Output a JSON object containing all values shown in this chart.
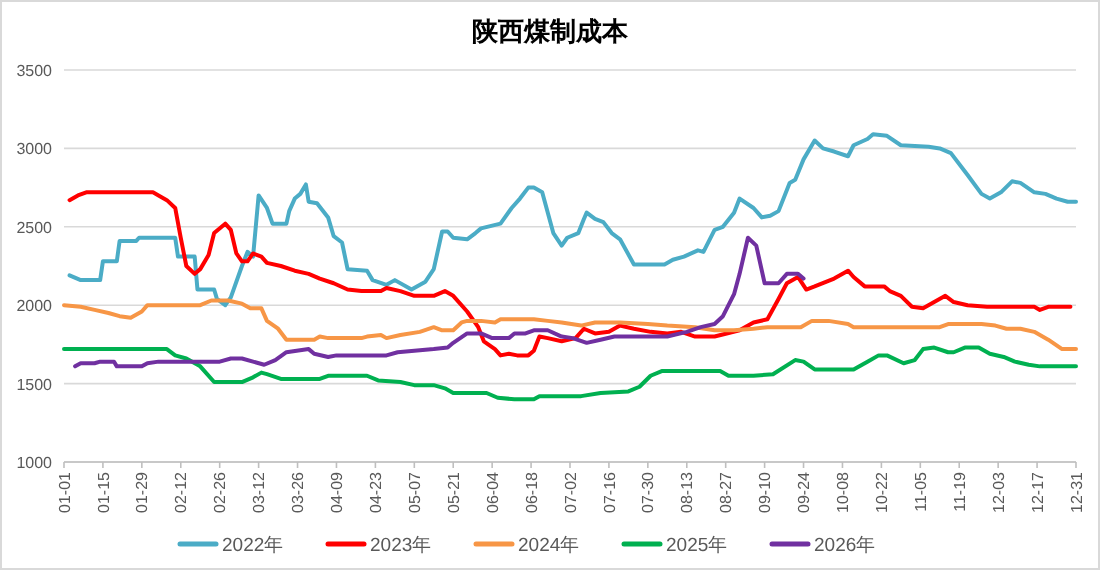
{
  "chart_data": {
    "type": "line",
    "title": "陕西煤制成本",
    "xlim": [
      "--01-01",
      "--12-31"
    ],
    "xticks": [
      {
        "value": "--01-01",
        "label": "01-01"
      },
      {
        "value": "--01-15",
        "label": "01-15"
      },
      {
        "value": "--01-29",
        "label": "01-29"
      },
      {
        "value": "--02-12",
        "label": "02-12"
      },
      {
        "value": "--02-26",
        "label": "02-26"
      },
      {
        "value": "--03-12",
        "label": "03-12"
      },
      {
        "value": "--03-26",
        "label": "03-26"
      },
      {
        "value": "--04-09",
        "label": "04-09"
      },
      {
        "value": "--04-23",
        "label": "04-23"
      },
      {
        "value": "--05-07",
        "label": "05-07"
      },
      {
        "value": "--05-21",
        "label": "05-21"
      },
      {
        "value": "--06-04",
        "label": "06-04"
      },
      {
        "value": "--06-18",
        "label": "06-18"
      },
      {
        "value": "--07-02",
        "label": "07-02"
      },
      {
        "value": "--07-16",
        "label": "07-16"
      },
      {
        "value": "--07-30",
        "label": "07-30"
      },
      {
        "value": "--08-13",
        "label": "08-13"
      },
      {
        "value": "--08-27",
        "label": "08-27"
      },
      {
        "value": "--09-10",
        "label": "09-10"
      },
      {
        "value": "--09-24",
        "label": "09-24"
      },
      {
        "value": "--10-08",
        "label": "10-08"
      },
      {
        "value": "--10-22",
        "label": "10-22"
      },
      {
        "value": "--11-05",
        "label": "11-05"
      },
      {
        "value": "--11-19",
        "label": "11-19"
      },
      {
        "value": "--12-03",
        "label": "12-03"
      },
      {
        "value": "--12-17",
        "label": "12-17"
      },
      {
        "value": "--12-31",
        "label": "12-31"
      }
    ],
    "ylim": [
      1000,
      3500
    ],
    "yticks": [
      1000,
      1500,
      2000,
      2500,
      3000,
      3500
    ],
    "grid": "y",
    "legend": "bottom",
    "series": [
      {
        "name": "2022年",
        "color": "#4bacc6",
        "x": [
          "--01-03",
          "--01-07",
          "--01-14",
          "--01-15",
          "--01-20",
          "--01-21",
          "--01-27",
          "--01-28",
          "--02-10",
          "--02-11",
          "--02-17",
          "--02-18",
          "--02-24",
          "--02-25",
          "--02-28",
          "--03-02",
          "--03-06",
          "--03-08",
          "--03-10",
          "--03-12",
          "--03-15",
          "--03-17",
          "--03-22",
          "--03-23",
          "--03-25",
          "--03-27",
          "--03-29",
          "--03-30",
          "--04-02",
          "--04-06",
          "--04-08",
          "--04-11",
          "--04-13",
          "--04-20",
          "--04-22",
          "--04-27",
          "--04-30",
          "--05-06",
          "--05-11",
          "--05-14",
          "--05-17",
          "--05-19",
          "--05-21",
          "--05-26",
          "--05-29",
          "--05-31",
          "--06-07",
          "--06-11",
          "--06-14",
          "--06-17",
          "--06-19",
          "--06-22",
          "--06-26",
          "--06-29",
          "--07-01",
          "--07-05",
          "--07-07",
          "--07-08",
          "--07-11",
          "--07-14",
          "--07-17",
          "--07-20",
          "--07-25",
          "--08-05",
          "--08-08",
          "--08-12",
          "--08-17",
          "--08-19",
          "--08-23",
          "--08-26",
          "--08-30",
          "--09-01",
          "--09-06",
          "--09-09",
          "--09-12",
          "--09-15",
          "--09-19",
          "--09-21",
          "--09-24",
          "--09-28",
          "--10-01",
          "--10-05",
          "--10-10",
          "--10-12",
          "--10-17",
          "--10-19",
          "--10-24",
          "--10-29",
          "--11-08",
          "--11-12",
          "--11-16",
          "--11-22",
          "--11-27",
          "--11-30",
          "--12-04",
          "--12-08",
          "--12-11",
          "--12-16",
          "--12-20",
          "--12-24",
          "--12-28",
          "--12-31"
        ],
        "values": [
          2190,
          2160,
          2160,
          2280,
          2280,
          2410,
          2410,
          2430,
          2430,
          2310,
          2310,
          2100,
          2100,
          2040,
          2000,
          2050,
          2250,
          2340,
          2310,
          2700,
          2620,
          2520,
          2520,
          2600,
          2680,
          2710,
          2770,
          2660,
          2650,
          2560,
          2440,
          2400,
          2230,
          2220,
          2160,
          2130,
          2160,
          2100,
          2150,
          2230,
          2470,
          2470,
          2430,
          2420,
          2460,
          2490,
          2520,
          2620,
          2680,
          2750,
          2750,
          2720,
          2460,
          2380,
          2430,
          2460,
          2550,
          2590,
          2550,
          2530,
          2460,
          2420,
          2260,
          2260,
          2290,
          2310,
          2350,
          2340,
          2480,
          2500,
          2590,
          2680,
          2620,
          2560,
          2570,
          2600,
          2780,
          2800,
          2930,
          3050,
          3000,
          2980,
          2950,
          3020,
          3060,
          3090,
          3080,
          3020,
          3010,
          3000,
          2970,
          2830,
          2710,
          2680,
          2720,
          2790,
          2780,
          2720,
          2710,
          2680,
          2660,
          2660
        ]
      },
      {
        "name": "2023年",
        "color": "#ff0000",
        "x": [
          "--01-03",
          "--01-06",
          "--01-09",
          "--02-02",
          "--02-04",
          "--02-07",
          "--02-10",
          "--02-12",
          "--02-14",
          "--02-17",
          "--02-19",
          "--02-22",
          "--02-24",
          "--02-28",
          "--03-02",
          "--03-04",
          "--03-06",
          "--03-08",
          "--03-10",
          "--03-13",
          "--03-15",
          "--03-20",
          "--03-25",
          "--03-30",
          "--04-03",
          "--04-08",
          "--04-13",
          "--04-18",
          "--04-25",
          "--04-27",
          "--05-02",
          "--05-07",
          "--05-14",
          "--05-18",
          "--05-21",
          "--05-26",
          "--05-30",
          "--06-01",
          "--06-05",
          "--06-07",
          "--06-10",
          "--06-13",
          "--06-17",
          "--06-19",
          "--06-21",
          "--06-24",
          "--06-29",
          "--07-04",
          "--07-07",
          "--07-11",
          "--07-16",
          "--07-20",
          "--07-25",
          "--07-31",
          "--08-06",
          "--08-11",
          "--08-16",
          "--08-23",
          "--09-01",
          "--09-06",
          "--09-11",
          "--09-15",
          "--09-18",
          "--09-22",
          "--09-25",
          "--09-28",
          "--10-05",
          "--10-10",
          "--10-12",
          "--10-16",
          "--10-23",
          "--10-25",
          "--10-29",
          "--11-02",
          "--11-06",
          "--11-10",
          "--11-14",
          "--11-17",
          "--11-22",
          "--11-29",
          "--12-06",
          "--12-16",
          "--12-18",
          "--12-21",
          "--12-29"
        ],
        "values": [
          2670,
          2700,
          2720,
          2720,
          2700,
          2670,
          2620,
          2430,
          2250,
          2200,
          2230,
          2320,
          2460,
          2520,
          2480,
          2330,
          2280,
          2280,
          2330,
          2310,
          2270,
          2250,
          2220,
          2200,
          2170,
          2140,
          2100,
          2090,
          2090,
          2110,
          2090,
          2060,
          2060,
          2090,
          2060,
          1960,
          1860,
          1770,
          1720,
          1680,
          1690,
          1680,
          1680,
          1710,
          1800,
          1790,
          1770,
          1790,
          1850,
          1820,
          1830,
          1870,
          1850,
          1830,
          1820,
          1830,
          1800,
          1800,
          1840,
          1890,
          1910,
          2040,
          2140,
          2180,
          2100,
          2120,
          2170,
          2220,
          2180,
          2120,
          2120,
          2090,
          2060,
          1990,
          1980,
          2020,
          2060,
          2020,
          2000,
          1990,
          1990,
          1990,
          1970,
          1990,
          1990
        ]
      },
      {
        "name": "2024年",
        "color": "#f79646",
        "x": [
          "--01-01",
          "--01-07",
          "--01-12",
          "--01-17",
          "--01-21",
          "--01-25",
          "--01-29",
          "--01-31",
          "--02-19",
          "--02-23",
          "--03-01",
          "--03-06",
          "--03-09",
          "--03-13",
          "--03-15",
          "--03-19",
          "--03-22",
          "--04-01",
          "--04-03",
          "--04-06",
          "--04-18",
          "--04-20",
          "--04-25",
          "--04-27",
          "--05-02",
          "--05-09",
          "--05-14",
          "--05-17",
          "--05-21",
          "--05-24",
          "--05-26",
          "--05-31",
          "--06-05",
          "--06-07",
          "--06-19",
          "--06-24",
          "--06-29",
          "--07-06",
          "--07-11",
          "--07-20",
          "--07-30",
          "--08-06",
          "--08-16",
          "--08-23",
          "--08-30",
          "--09-06",
          "--09-11",
          "--09-23",
          "--09-27",
          "--10-03",
          "--10-10",
          "--10-12",
          "--11-12",
          "--11-15",
          "--11-27",
          "--12-02",
          "--12-06",
          "--12-11",
          "--12-16",
          "--12-21",
          "--12-26",
          "--12-31"
        ],
        "values": [
          2000,
          1990,
          1970,
          1950,
          1930,
          1920,
          1960,
          2000,
          2000,
          2030,
          2030,
          2010,
          1980,
          1980,
          1900,
          1850,
          1780,
          1780,
          1800,
          1790,
          1790,
          1800,
          1810,
          1790,
          1810,
          1830,
          1860,
          1840,
          1840,
          1890,
          1900,
          1900,
          1890,
          1910,
          1910,
          1900,
          1890,
          1870,
          1890,
          1890,
          1880,
          1870,
          1860,
          1840,
          1840,
          1850,
          1860,
          1860,
          1900,
          1900,
          1880,
          1860,
          1860,
          1880,
          1880,
          1870,
          1850,
          1850,
          1830,
          1780,
          1720,
          1720
        ]
      },
      {
        "name": "2025年",
        "color": "#00b050",
        "x": [
          "--01-01",
          "--02-07",
          "--02-10",
          "--02-14",
          "--02-19",
          "--02-24",
          "--03-06",
          "--03-10",
          "--03-13",
          "--03-15",
          "--03-20",
          "--04-03",
          "--04-06",
          "--04-20",
          "--04-24",
          "--05-02",
          "--05-07",
          "--05-14",
          "--05-18",
          "--05-21",
          "--06-02",
          "--06-06",
          "--06-12",
          "--06-19",
          "--06-21",
          "--06-29",
          "--07-06",
          "--07-13",
          "--07-23",
          "--07-27",
          "--07-31",
          "--08-04",
          "--08-25",
          "--08-28",
          "--09-06",
          "--09-13",
          "--09-21",
          "--09-24",
          "--09-28",
          "--10-12",
          "--10-17",
          "--10-21",
          "--10-24",
          "--10-30",
          "--11-03",
          "--11-06",
          "--11-10",
          "--11-15",
          "--11-17",
          "--11-21",
          "--11-26",
          "--11-30",
          "--12-05",
          "--12-09",
          "--12-14",
          "--12-18",
          "--12-31"
        ],
        "values": [
          1720,
          1720,
          1680,
          1660,
          1610,
          1510,
          1510,
          1540,
          1570,
          1560,
          1530,
          1530,
          1550,
          1550,
          1520,
          1510,
          1490,
          1490,
          1470,
          1440,
          1440,
          1410,
          1400,
          1400,
          1420,
          1420,
          1420,
          1440,
          1450,
          1480,
          1550,
          1580,
          1580,
          1550,
          1550,
          1560,
          1650,
          1640,
          1590,
          1590,
          1640,
          1680,
          1680,
          1630,
          1650,
          1720,
          1730,
          1700,
          1700,
          1730,
          1730,
          1690,
          1670,
          1640,
          1620,
          1610,
          1610
        ]
      },
      {
        "name": "2026年",
        "color": "#7030a0",
        "x": [
          "--01-05",
          "--01-07",
          "--01-12",
          "--01-14",
          "--01-19",
          "--01-20",
          "--01-29",
          "--01-31",
          "--02-04",
          "--02-26",
          "--03-02",
          "--03-06",
          "--03-10",
          "--03-14",
          "--03-18",
          "--03-22",
          "--03-30",
          "--04-01",
          "--04-06",
          "--04-09",
          "--04-27",
          "--05-01",
          "--05-14",
          "--05-19",
          "--05-21",
          "--05-26",
          "--05-31",
          "--06-04",
          "--06-10",
          "--06-12",
          "--06-16",
          "--06-19",
          "--06-24",
          "--06-29",
          "--07-03",
          "--07-08",
          "--07-13",
          "--07-18",
          "--08-06",
          "--08-13",
          "--08-18",
          "--08-23",
          "--08-26",
          "--08-30",
          "--09-01",
          "--09-04",
          "--09-07",
          "--09-10",
          "--09-15",
          "--09-18",
          "--09-22",
          "--09-24"
        ],
        "values": [
          1610,
          1630,
          1630,
          1640,
          1640,
          1610,
          1610,
          1630,
          1640,
          1640,
          1660,
          1660,
          1640,
          1620,
          1650,
          1700,
          1720,
          1690,
          1670,
          1680,
          1680,
          1700,
          1720,
          1730,
          1760,
          1820,
          1820,
          1790,
          1790,
          1820,
          1820,
          1840,
          1840,
          1800,
          1790,
          1760,
          1780,
          1800,
          1800,
          1830,
          1860,
          1880,
          1930,
          2070,
          2200,
          2430,
          2380,
          2140,
          2140,
          2200,
          2200,
          2170
        ]
      }
    ]
  }
}
